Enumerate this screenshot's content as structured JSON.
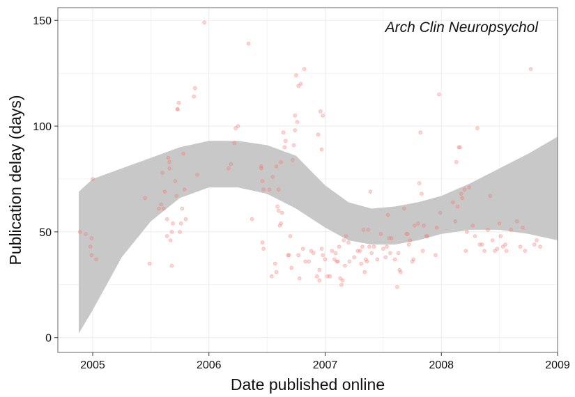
{
  "chart_data": {
    "type": "scatter",
    "title": "",
    "annotation": "Arch Clin Neuropsychol",
    "xlabel": "Date published online",
    "ylabel": "Publication delay (days)",
    "xlim": [
      2004.7,
      2009.0
    ],
    "ylim": [
      -7,
      156
    ],
    "x_ticks": [
      2005,
      2006,
      2007,
      2008,
      2009
    ],
    "x_tick_labels": [
      "2005",
      "2006",
      "2007",
      "2008",
      "2009"
    ],
    "y_ticks": [
      0,
      50,
      100,
      150
    ],
    "y_tick_labels": [
      "0",
      "50",
      "100",
      "150"
    ],
    "grid": true,
    "legend": "none",
    "colors": {
      "points": "#f8766d",
      "ribbon": "#c8c8c8",
      "panel_border": "#7f7f7f",
      "grid": "#ebebeb"
    },
    "ribbon": {
      "x": [
        2004.88,
        2005.0,
        2005.25,
        2005.5,
        2005.75,
        2006.0,
        2006.25,
        2006.5,
        2006.75,
        2007.0,
        2007.2,
        2007.4,
        2007.6,
        2007.8,
        2008.0,
        2008.25,
        2008.5,
        2008.75,
        2009.0
      ],
      "upper": [
        69,
        75,
        80,
        85,
        90,
        93,
        93,
        91,
        86,
        72,
        64,
        61,
        62,
        64,
        67,
        73,
        80,
        87,
        95
      ],
      "lower": [
        2,
        13,
        38,
        55,
        66,
        71,
        71,
        68,
        61,
        52,
        46,
        44,
        44,
        46,
        49,
        51,
        51,
        49,
        46
      ]
    },
    "points": [
      {
        "x": 2004.89,
        "y": 50
      },
      {
        "x": 2004.94,
        "y": 49
      },
      {
        "x": 2004.98,
        "y": 43
      },
      {
        "x": 2004.99,
        "y": 39
      },
      {
        "x": 2004.99,
        "y": 47
      },
      {
        "x": 2005.0,
        "y": 75
      },
      {
        "x": 2005.03,
        "y": 37
      },
      {
        "x": 2005.45,
        "y": 66
      },
      {
        "x": 2005.49,
        "y": 35
      },
      {
        "x": 2005.57,
        "y": 61
      },
      {
        "x": 2005.59,
        "y": 63
      },
      {
        "x": 2005.6,
        "y": 78
      },
      {
        "x": 2005.61,
        "y": 61
      },
      {
        "x": 2005.62,
        "y": 69
      },
      {
        "x": 2005.64,
        "y": 48
      },
      {
        "x": 2005.64,
        "y": 56
      },
      {
        "x": 2005.65,
        "y": 85
      },
      {
        "x": 2005.66,
        "y": 83
      },
      {
        "x": 2005.66,
        "y": 80
      },
      {
        "x": 2005.67,
        "y": 46
      },
      {
        "x": 2005.68,
        "y": 34
      },
      {
        "x": 2005.68,
        "y": 50
      },
      {
        "x": 2005.69,
        "y": 54
      },
      {
        "x": 2005.71,
        "y": 74
      },
      {
        "x": 2005.72,
        "y": 67
      },
      {
        "x": 2005.73,
        "y": 108
      },
      {
        "x": 2005.73,
        "y": 108
      },
      {
        "x": 2005.74,
        "y": 111
      },
      {
        "x": 2005.75,
        "y": 50
      },
      {
        "x": 2005.76,
        "y": 54
      },
      {
        "x": 2005.77,
        "y": 61
      },
      {
        "x": 2005.78,
        "y": 87
      },
      {
        "x": 2005.79,
        "y": 70
      },
      {
        "x": 2005.8,
        "y": 56
      },
      {
        "x": 2005.87,
        "y": 114
      },
      {
        "x": 2005.88,
        "y": 118
      },
      {
        "x": 2005.9,
        "y": 77
      },
      {
        "x": 2005.96,
        "y": 149
      },
      {
        "x": 2006.17,
        "y": 80
      },
      {
        "x": 2006.19,
        "y": 82
      },
      {
        "x": 2006.22,
        "y": 92
      },
      {
        "x": 2006.23,
        "y": 99
      },
      {
        "x": 2006.25,
        "y": 100
      },
      {
        "x": 2006.34,
        "y": 139
      },
      {
        "x": 2006.37,
        "y": 56
      },
      {
        "x": 2006.45,
        "y": 81
      },
      {
        "x": 2006.45,
        "y": 80
      },
      {
        "x": 2006.46,
        "y": 74
      },
      {
        "x": 2006.46,
        "y": 45
      },
      {
        "x": 2006.47,
        "y": 42
      },
      {
        "x": 2006.47,
        "y": 70
      },
      {
        "x": 2006.52,
        "y": 70
      },
      {
        "x": 2006.54,
        "y": 29
      },
      {
        "x": 2006.55,
        "y": 76
      },
      {
        "x": 2006.57,
        "y": 35
      },
      {
        "x": 2006.58,
        "y": 31
      },
      {
        "x": 2006.58,
        "y": 81
      },
      {
        "x": 2006.59,
        "y": 62
      },
      {
        "x": 2006.6,
        "y": 60
      },
      {
        "x": 2006.6,
        "y": 70
      },
      {
        "x": 2006.61,
        "y": 53
      },
      {
        "x": 2006.62,
        "y": 54
      },
      {
        "x": 2006.62,
        "y": 83
      },
      {
        "x": 2006.63,
        "y": 59
      },
      {
        "x": 2006.64,
        "y": 97
      },
      {
        "x": 2006.65,
        "y": 90
      },
      {
        "x": 2006.66,
        "y": 93
      },
      {
        "x": 2006.68,
        "y": 39
      },
      {
        "x": 2006.69,
        "y": 39
      },
      {
        "x": 2006.7,
        "y": 48
      },
      {
        "x": 2006.71,
        "y": 33
      },
      {
        "x": 2006.72,
        "y": 84
      },
      {
        "x": 2006.73,
        "y": 91
      },
      {
        "x": 2006.74,
        "y": 98
      },
      {
        "x": 2006.74,
        "y": 105
      },
      {
        "x": 2006.75,
        "y": 124
      },
      {
        "x": 2006.76,
        "y": 102
      },
      {
        "x": 2006.77,
        "y": 119
      },
      {
        "x": 2006.77,
        "y": 39
      },
      {
        "x": 2006.78,
        "y": 28
      },
      {
        "x": 2006.79,
        "y": 120
      },
      {
        "x": 2006.81,
        "y": 42
      },
      {
        "x": 2006.82,
        "y": 127
      },
      {
        "x": 2006.83,
        "y": 36
      },
      {
        "x": 2006.86,
        "y": 36
      },
      {
        "x": 2006.88,
        "y": 41
      },
      {
        "x": 2006.9,
        "y": 40
      },
      {
        "x": 2006.93,
        "y": 29
      },
      {
        "x": 2006.94,
        "y": 96
      },
      {
        "x": 2006.95,
        "y": 27
      },
      {
        "x": 2006.95,
        "y": 32
      },
      {
        "x": 2006.96,
        "y": 107
      },
      {
        "x": 2006.97,
        "y": 89
      },
      {
        "x": 2006.97,
        "y": 42
      },
      {
        "x": 2006.98,
        "y": 39
      },
      {
        "x": 2006.98,
        "y": 105
      },
      {
        "x": 2007.0,
        "y": 37
      },
      {
        "x": 2007.02,
        "y": 29
      },
      {
        "x": 2007.04,
        "y": 29
      },
      {
        "x": 2007.06,
        "y": 41
      },
      {
        "x": 2007.08,
        "y": 37
      },
      {
        "x": 2007.09,
        "y": 40
      },
      {
        "x": 2007.1,
        "y": 36
      },
      {
        "x": 2007.11,
        "y": 36
      },
      {
        "x": 2007.12,
        "y": 43
      },
      {
        "x": 2007.13,
        "y": 28
      },
      {
        "x": 2007.14,
        "y": 25
      },
      {
        "x": 2007.15,
        "y": 27
      },
      {
        "x": 2007.16,
        "y": 46
      },
      {
        "x": 2007.17,
        "y": 34
      },
      {
        "x": 2007.18,
        "y": 48
      },
      {
        "x": 2007.2,
        "y": 45
      },
      {
        "x": 2007.21,
        "y": 36
      },
      {
        "x": 2007.25,
        "y": 38
      },
      {
        "x": 2007.28,
        "y": 41
      },
      {
        "x": 2007.3,
        "y": 41
      },
      {
        "x": 2007.31,
        "y": 35
      },
      {
        "x": 2007.32,
        "y": 43
      },
      {
        "x": 2007.33,
        "y": 51
      },
      {
        "x": 2007.34,
        "y": 31
      },
      {
        "x": 2007.35,
        "y": 37
      },
      {
        "x": 2007.36,
        "y": 36
      },
      {
        "x": 2007.37,
        "y": 51
      },
      {
        "x": 2007.38,
        "y": 43
      },
      {
        "x": 2007.39,
        "y": 69
      },
      {
        "x": 2007.4,
        "y": 40
      },
      {
        "x": 2007.42,
        "y": 43
      },
      {
        "x": 2007.45,
        "y": 37
      },
      {
        "x": 2007.48,
        "y": 49
      },
      {
        "x": 2007.5,
        "y": 42
      },
      {
        "x": 2007.52,
        "y": 38
      },
      {
        "x": 2007.53,
        "y": 43
      },
      {
        "x": 2007.54,
        "y": 58
      },
      {
        "x": 2007.55,
        "y": 47
      },
      {
        "x": 2007.56,
        "y": 40
      },
      {
        "x": 2007.57,
        "y": 47
      },
      {
        "x": 2007.6,
        "y": 37
      },
      {
        "x": 2007.62,
        "y": 24
      },
      {
        "x": 2007.63,
        "y": 40
      },
      {
        "x": 2007.64,
        "y": 32
      },
      {
        "x": 2007.65,
        "y": 31
      },
      {
        "x": 2007.68,
        "y": 61
      },
      {
        "x": 2007.7,
        "y": 49
      },
      {
        "x": 2007.71,
        "y": 49
      },
      {
        "x": 2007.72,
        "y": 44
      },
      {
        "x": 2007.73,
        "y": 46
      },
      {
        "x": 2007.75,
        "y": 36
      },
      {
        "x": 2007.76,
        "y": 37
      },
      {
        "x": 2007.77,
        "y": 53
      },
      {
        "x": 2007.8,
        "y": 54
      },
      {
        "x": 2007.81,
        "y": 73
      },
      {
        "x": 2007.82,
        "y": 97
      },
      {
        "x": 2007.83,
        "y": 68
      },
      {
        "x": 2007.84,
        "y": 41
      },
      {
        "x": 2007.85,
        "y": 53
      },
      {
        "x": 2007.87,
        "y": 48
      },
      {
        "x": 2007.88,
        "y": 48
      },
      {
        "x": 2007.95,
        "y": 39
      },
      {
        "x": 2007.96,
        "y": 52
      },
      {
        "x": 2007.98,
        "y": 115
      },
      {
        "x": 2007.99,
        "y": 59
      },
      {
        "x": 2008.1,
        "y": 64
      },
      {
        "x": 2008.12,
        "y": 55
      },
      {
        "x": 2008.13,
        "y": 83
      },
      {
        "x": 2008.14,
        "y": 62
      },
      {
        "x": 2008.15,
        "y": 90
      },
      {
        "x": 2008.16,
        "y": 90
      },
      {
        "x": 2008.17,
        "y": 68
      },
      {
        "x": 2008.18,
        "y": 66
      },
      {
        "x": 2008.2,
        "y": 70
      },
      {
        "x": 2008.21,
        "y": 41
      },
      {
        "x": 2008.22,
        "y": 50
      },
      {
        "x": 2008.24,
        "y": 71
      },
      {
        "x": 2008.27,
        "y": 53
      },
      {
        "x": 2008.29,
        "y": 48
      },
      {
        "x": 2008.31,
        "y": 99
      },
      {
        "x": 2008.33,
        "y": 44
      },
      {
        "x": 2008.35,
        "y": 44
      },
      {
        "x": 2008.37,
        "y": 41
      },
      {
        "x": 2008.4,
        "y": 51
      },
      {
        "x": 2008.42,
        "y": 67
      },
      {
        "x": 2008.44,
        "y": 46
      },
      {
        "x": 2008.46,
        "y": 41
      },
      {
        "x": 2008.48,
        "y": 42
      },
      {
        "x": 2008.5,
        "y": 54
      },
      {
        "x": 2008.51,
        "y": 48
      },
      {
        "x": 2008.53,
        "y": 43
      },
      {
        "x": 2008.55,
        "y": 44
      },
      {
        "x": 2008.56,
        "y": 41
      },
      {
        "x": 2008.6,
        "y": 51
      },
      {
        "x": 2008.65,
        "y": 55
      },
      {
        "x": 2008.68,
        "y": 43
      },
      {
        "x": 2008.7,
        "y": 52
      },
      {
        "x": 2008.72,
        "y": 41
      },
      {
        "x": 2008.77,
        "y": 127
      },
      {
        "x": 2008.8,
        "y": 44
      },
      {
        "x": 2008.82,
        "y": 46
      },
      {
        "x": 2008.85,
        "y": 43
      }
    ]
  }
}
